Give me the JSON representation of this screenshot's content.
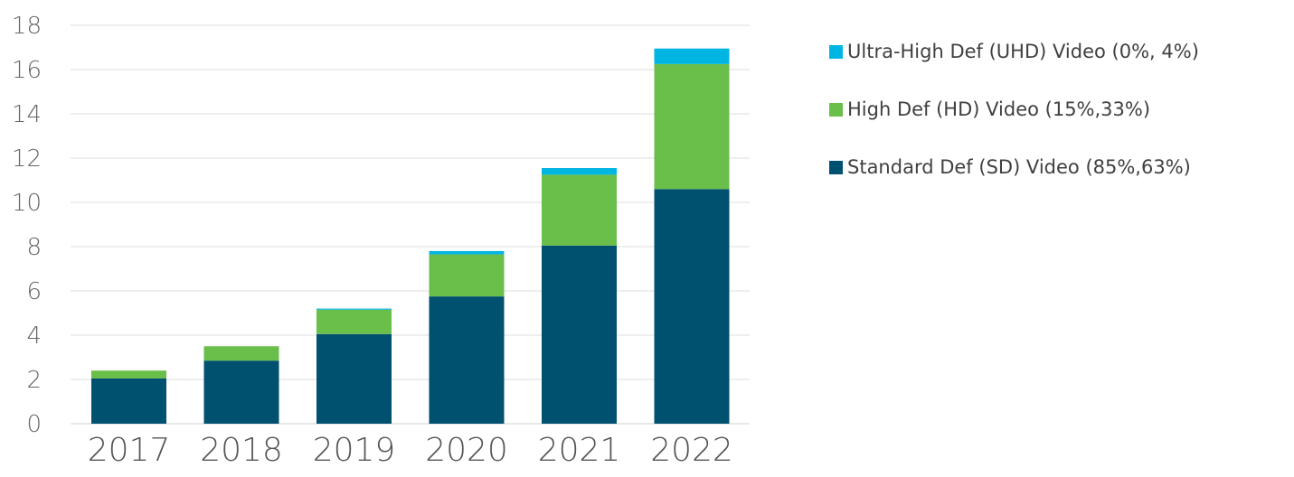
{
  "chart_data": {
    "type": "bar",
    "stacked": true,
    "categories": [
      "2017",
      "2018",
      "2019",
      "2020",
      "2021",
      "2022"
    ],
    "series": [
      {
        "name": "Standard Def (SD) Video (85%,63%)",
        "color": "#00506f",
        "values": [
          2.05,
          2.85,
          4.05,
          5.75,
          8.05,
          10.6
        ]
      },
      {
        "name": "High Def (HD) Video (15%,33%)",
        "color": "#6abe4a",
        "values": [
          0.35,
          0.65,
          1.1,
          1.9,
          3.2,
          5.65
        ]
      },
      {
        "name": "Ultra-High Def (UHD) Video (0%, 4%)",
        "color": "#00b5e2",
        "values": [
          0.0,
          0.0,
          0.05,
          0.15,
          0.3,
          0.7
        ]
      }
    ],
    "ylim": [
      0,
      18
    ],
    "yticks": [
      "0",
      "2",
      "4",
      "6",
      "8",
      "10",
      "12",
      "14",
      "16",
      "18"
    ],
    "grid": true,
    "legend_position": "right",
    "legend_order": [
      "Ultra-High Def (UHD) Video (0%, 4%)",
      "High Def (HD) Video (15%,33%)",
      "Standard Def (SD) Video (85%,63%)"
    ]
  }
}
